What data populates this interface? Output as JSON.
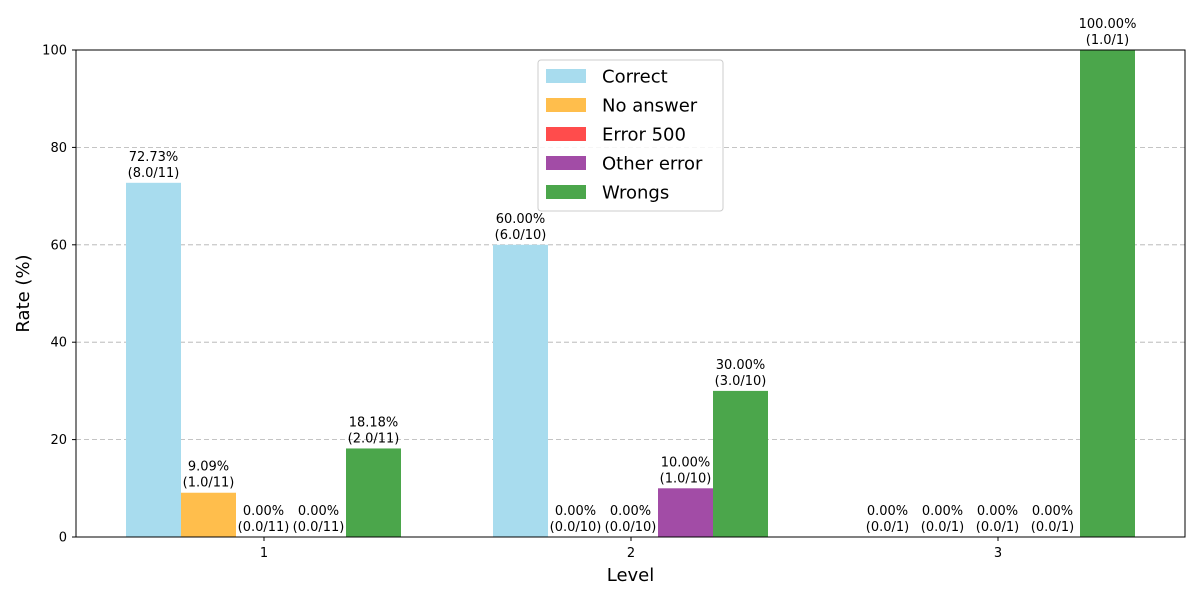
{
  "chart_data": {
    "type": "bar",
    "xlabel": "Level",
    "ylabel": "Rate (%)",
    "ylim": [
      0,
      100
    ],
    "yticks": [
      0,
      20,
      40,
      60,
      80,
      100
    ],
    "grid": "y-dashed",
    "legend_position": "top-center",
    "categories": [
      "1",
      "2",
      "3"
    ],
    "series": [
      {
        "name": "Correct",
        "color": "#a8dcee",
        "values": [
          72.73,
          60.0,
          0.0
        ],
        "labels": [
          "72.73%\n(8.0/11)",
          "60.00%\n(6.0/10)",
          "0.00%\n(0.0/1)"
        ]
      },
      {
        "name": "No answer",
        "color": "#ffbe4c",
        "values": [
          9.09,
          0.0,
          0.0
        ],
        "labels": [
          "9.09%\n(1.0/11)",
          "0.00%\n(0.0/10)",
          "0.00%\n(0.0/1)"
        ]
      },
      {
        "name": "Error 500",
        "color": "#ff4c4c",
        "values": [
          0.0,
          0.0,
          0.0
        ],
        "labels": [
          "0.00%\n(0.0/11)",
          "0.00%\n(0.0/10)",
          "0.00%\n(0.0/1)"
        ]
      },
      {
        "name": "Other error",
        "color": "#a24ca6",
        "values": [
          0.0,
          10.0,
          0.0
        ],
        "labels": [
          "0.00%\n(0.0/11)",
          "10.00%\n(1.0/10)",
          "0.00%\n(0.0/1)"
        ]
      },
      {
        "name": "Wrongs",
        "color": "#4ba64b",
        "values": [
          18.18,
          30.0,
          100.0
        ],
        "labels": [
          "18.18%\n(2.0/11)",
          "30.00%\n(3.0/10)",
          "100.00%\n(1.0/1)"
        ]
      }
    ]
  }
}
